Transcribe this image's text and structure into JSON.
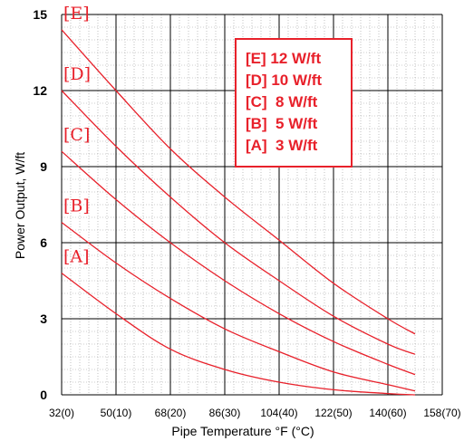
{
  "chart_data": {
    "type": "line",
    "xlabel": "Pipe Temperature °F (°C)",
    "ylabel": "Power Output, W/ft",
    "xlim": [
      32,
      158
    ],
    "ylim": [
      0,
      15
    ],
    "x_ticks": [
      "32(0)",
      "50(10)",
      "68(20)",
      "86(30)",
      "104(40)",
      "122(50)",
      "140(60)",
      "158(70)"
    ],
    "y_ticks": [
      "0",
      "3",
      "6",
      "9",
      "12",
      "15"
    ],
    "grid": true,
    "legend": {
      "position": "top-right",
      "entries": [
        "[E] 12 W/ft",
        "[D] 10 W/ft",
        "[C]  8 W/ft",
        "[B]  5 W/ft",
        "[A]  3 W/ft"
      ]
    },
    "series": [
      {
        "label": "[E]",
        "x": [
          32,
          50,
          68,
          86,
          104,
          122,
          140,
          149
        ],
        "y": [
          14.4,
          12.0,
          9.7,
          7.8,
          6.1,
          4.4,
          3.0,
          2.4
        ]
      },
      {
        "label": "[D]",
        "x": [
          32,
          50,
          68,
          86,
          104,
          122,
          140,
          149
        ],
        "y": [
          12.0,
          9.8,
          7.8,
          6.0,
          4.5,
          3.1,
          2.0,
          1.6
        ]
      },
      {
        "label": "[C]",
        "x": [
          32,
          50,
          68,
          86,
          104,
          122,
          140,
          149
        ],
        "y": [
          9.6,
          7.7,
          6.0,
          4.5,
          3.2,
          2.1,
          1.2,
          0.8
        ]
      },
      {
        "label": "[B]",
        "x": [
          32,
          50,
          68,
          86,
          104,
          122,
          140,
          149
        ],
        "y": [
          6.8,
          5.2,
          3.8,
          2.6,
          1.7,
          0.9,
          0.4,
          0.15
        ]
      },
      {
        "label": "[A]",
        "x": [
          32,
          50,
          68,
          86,
          104,
          122,
          140,
          149
        ],
        "y": [
          4.8,
          3.2,
          1.8,
          1.0,
          0.5,
          0.2,
          0.05,
          0.0
        ]
      }
    ],
    "colors": {
      "curve": "#e8212b",
      "legend_border": "#e8212b",
      "grid_major": "#000000",
      "grid_minor": "#9a9a9a"
    }
  }
}
